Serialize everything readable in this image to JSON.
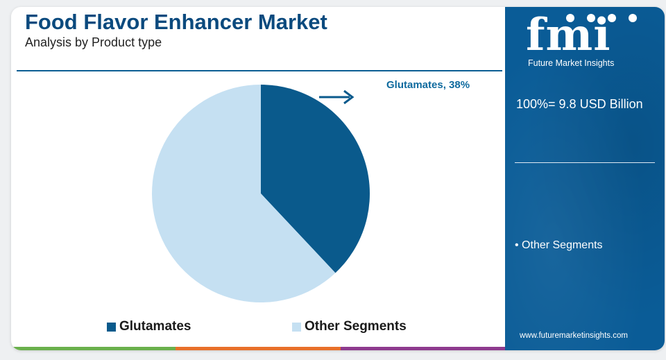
{
  "header": {
    "title": "Food Flavor Enhancer Market",
    "subtitle": "Analysis by Product type"
  },
  "chart_data": {
    "type": "pie",
    "title": "Food Flavor Enhancer Market",
    "subtitle": "Analysis by Product type",
    "categories": [
      "Glutamates",
      "Other Segments"
    ],
    "values": [
      38,
      62
    ],
    "colors": [
      "#0a5a8c",
      "#c5e0f2"
    ],
    "data_labels": [
      "Glutamates, 38%"
    ],
    "legend_position": "bottom"
  },
  "callout": {
    "label": "Glutamates, 38%"
  },
  "legend": {
    "items": [
      {
        "label": "Glutamates",
        "color": "#0a5a8c"
      },
      {
        "label": "Other Segments",
        "color": "#c5e0f2"
      }
    ]
  },
  "sidebar": {
    "logo_mark": "fmi",
    "logo_text": "Future Market Insights",
    "total": "100%= 9.8 USD Billion",
    "other_segments": "• Other Segments",
    "website": "www.futuremarketinsights.com",
    "background_color": "#0a5c97"
  },
  "bottom_bar_colors": [
    "#6ab04c",
    "#e8702a",
    "#8e3a8e"
  ]
}
